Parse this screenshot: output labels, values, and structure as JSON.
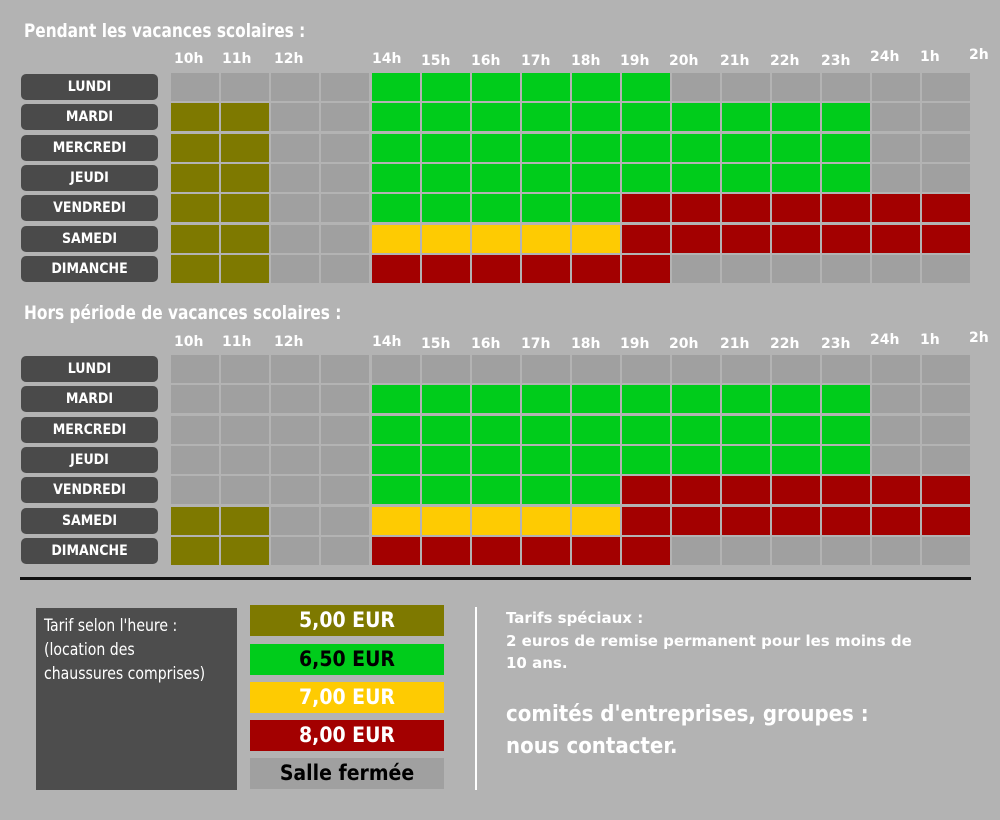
{
  "hours": [
    "10h",
    "11h",
    "12h",
    "14h",
    "15h",
    "16h",
    "17h",
    "18h",
    "19h",
    "20h",
    "21h",
    "22h",
    "23h",
    "24h",
    "1h",
    "2h"
  ],
  "colors": {
    "c5": "#7e7900",
    "c65": "#00cc1b",
    "c7": "#fecb02",
    "c8": "#a30000",
    "c0": "#a0a0a0"
  },
  "sections": [
    {
      "title": "Pendant les vacances scolaires :",
      "rows": [
        {
          "day": "LUNDI",
          "cells": [
            "c0",
            "c0",
            "c0",
            "c0",
            "c65",
            "c65",
            "c65",
            "c65",
            "c65",
            "c65",
            "c0",
            "c0",
            "c0",
            "c0",
            "c0",
            "c0"
          ]
        },
        {
          "day": "MARDI",
          "cells": [
            "c5",
            "c5",
            "c0",
            "c0",
            "c65",
            "c65",
            "c65",
            "c65",
            "c65",
            "c65",
            "c65",
            "c65",
            "c65",
            "c65",
            "c0",
            "c0"
          ]
        },
        {
          "day": "MERCREDI",
          "cells": [
            "c5",
            "c5",
            "c0",
            "c0",
            "c65",
            "c65",
            "c65",
            "c65",
            "c65",
            "c65",
            "c65",
            "c65",
            "c65",
            "c65",
            "c0",
            "c0"
          ]
        },
        {
          "day": "JEUDI",
          "cells": [
            "c5",
            "c5",
            "c0",
            "c0",
            "c65",
            "c65",
            "c65",
            "c65",
            "c65",
            "c65",
            "c65",
            "c65",
            "c65",
            "c65",
            "c0",
            "c0"
          ]
        },
        {
          "day": "VENDREDI",
          "cells": [
            "c5",
            "c5",
            "c0",
            "c0",
            "c65",
            "c65",
            "c65",
            "c65",
            "c65",
            "c8",
            "c8",
            "c8",
            "c8",
            "c8",
            "c8",
            "c8"
          ]
        },
        {
          "day": "SAMEDI",
          "cells": [
            "c5",
            "c5",
            "c0",
            "c0",
            "c7",
            "c7",
            "c7",
            "c7",
            "c7",
            "c8",
            "c8",
            "c8",
            "c8",
            "c8",
            "c8",
            "c8"
          ]
        },
        {
          "day": "DIMANCHE",
          "cells": [
            "c5",
            "c5",
            "c0",
            "c0",
            "c8",
            "c8",
            "c8",
            "c8",
            "c8",
            "c8",
            "c0",
            "c0",
            "c0",
            "c0",
            "c0",
            "c0"
          ]
        }
      ]
    },
    {
      "title": "Hors période de vacances scolaires :",
      "rows": [
        {
          "day": "LUNDI",
          "cells": [
            "c0",
            "c0",
            "c0",
            "c0",
            "c0",
            "c0",
            "c0",
            "c0",
            "c0",
            "c0",
            "c0",
            "c0",
            "c0",
            "c0",
            "c0",
            "c0"
          ]
        },
        {
          "day": "MARDI",
          "cells": [
            "c0",
            "c0",
            "c0",
            "c0",
            "c65",
            "c65",
            "c65",
            "c65",
            "c65",
            "c65",
            "c65",
            "c65",
            "c65",
            "c65",
            "c0",
            "c0"
          ]
        },
        {
          "day": "MERCREDI",
          "cells": [
            "c0",
            "c0",
            "c0",
            "c0",
            "c65",
            "c65",
            "c65",
            "c65",
            "c65",
            "c65",
            "c65",
            "c65",
            "c65",
            "c65",
            "c0",
            "c0"
          ]
        },
        {
          "day": "JEUDI",
          "cells": [
            "c0",
            "c0",
            "c0",
            "c0",
            "c65",
            "c65",
            "c65",
            "c65",
            "c65",
            "c65",
            "c65",
            "c65",
            "c65",
            "c65",
            "c0",
            "c0"
          ]
        },
        {
          "day": "VENDREDI",
          "cells": [
            "c0",
            "c0",
            "c0",
            "c0",
            "c65",
            "c65",
            "c65",
            "c65",
            "c65",
            "c8",
            "c8",
            "c8",
            "c8",
            "c8",
            "c8",
            "c8"
          ]
        },
        {
          "day": "SAMEDI",
          "cells": [
            "c5",
            "c5",
            "c0",
            "c0",
            "c7",
            "c7",
            "c7",
            "c7",
            "c7",
            "c8",
            "c8",
            "c8",
            "c8",
            "c8",
            "c8",
            "c8"
          ]
        },
        {
          "day": "DIMANCHE",
          "cells": [
            "c5",
            "c5",
            "c0",
            "c0",
            "c8",
            "c8",
            "c8",
            "c8",
            "c8",
            "c8",
            "c0",
            "c0",
            "c0",
            "c0",
            "c0",
            "c0"
          ]
        }
      ]
    }
  ],
  "legend": {
    "lines": [
      "Tarif selon l'heure :",
      "(location des",
      "chaussures comprises)"
    ],
    "prices": [
      {
        "label": "5,00 EUR",
        "color": "#7e7900",
        "text_color": "#ffffff"
      },
      {
        "label": "6,50 EUR",
        "color": "#00cc1b",
        "text_color": "#000000"
      },
      {
        "label": "7,00 EUR",
        "color": "#fecb02",
        "text_color": "#ffffff"
      },
      {
        "label": "8,00 EUR",
        "color": "#a30000",
        "text_color": "#ffffff"
      },
      {
        "label": "Salle fermée",
        "color": "#a0a0a0",
        "text_color": "#000000"
      }
    ]
  },
  "special": {
    "title": "Tarifs spéciaux :",
    "line1": "2 euros de remise permanent pour les moins de",
    "line2": "10 ans.",
    "contact1": "comités d'entreprises, groupes :",
    "contact2": "nous contacter."
  }
}
